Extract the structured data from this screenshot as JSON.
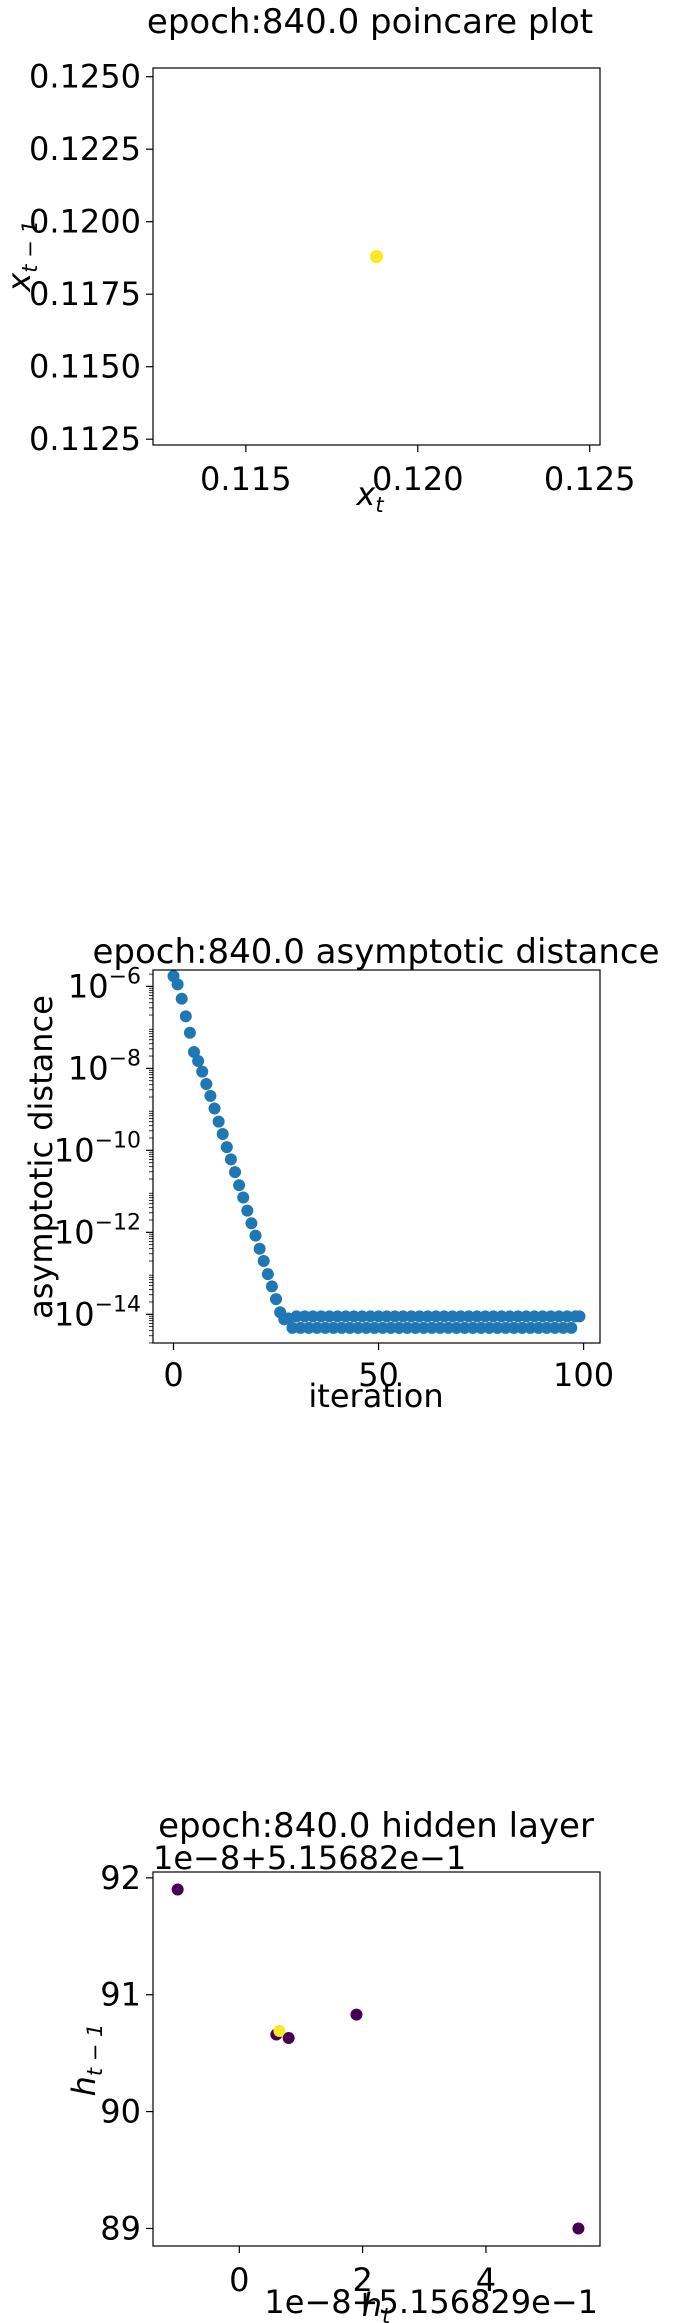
{
  "chart_data": [
    {
      "type": "scatter",
      "title": "epoch:840.0 poincare plot",
      "xlabel": "x_t",
      "ylabel": "x_{t-1}",
      "xlim": [
        0.1123,
        0.1253
      ],
      "ylim": [
        0.1123,
        0.1253
      ],
      "xticks": [
        "0.115",
        "0.120",
        "0.125"
      ],
      "xtick_values": [
        0.115,
        0.12,
        0.125
      ],
      "yticks": [
        "0.1125",
        "0.1150",
        "0.1175",
        "0.1200",
        "0.1225",
        "0.1250"
      ],
      "ytick_values": [
        0.1125,
        0.115,
        0.1175,
        0.12,
        0.1225,
        0.125
      ],
      "points": [
        {
          "x": 0.1188,
          "y": 0.1188
        }
      ],
      "point_color": "#fde725"
    },
    {
      "type": "scatter",
      "title": "epoch:840.0 asymptotic distance",
      "xlabel": "iteration",
      "ylabel": "asymptotic distance",
      "yscale": "log",
      "xlim": [
        -5,
        104
      ],
      "ylim_log10": [
        -14.7,
        -5.6
      ],
      "xticks": [
        "0",
        "50",
        "100"
      ],
      "xtick_values": [
        0,
        50,
        100
      ],
      "ytick_exponents": [
        "−6",
        "−8",
        "−10",
        "−12",
        "−14"
      ],
      "ytick_values_log10": [
        -6,
        -8,
        -10,
        -12,
        -14
      ],
      "ytick_base": "10",
      "point_color": "#1f77b4",
      "x": [
        0,
        1,
        2,
        3,
        4,
        5,
        6,
        7,
        8,
        9,
        10,
        11,
        12,
        13,
        14,
        15,
        16,
        17,
        18,
        19,
        20,
        21,
        22,
        23,
        24,
        25,
        26,
        27,
        28,
        29,
        30,
        31,
        32,
        33,
        34,
        35,
        36,
        37,
        38,
        39,
        40,
        41,
        42,
        43,
        44,
        45,
        46,
        47,
        48,
        49,
        50,
        51,
        52,
        53,
        54,
        55,
        56,
        57,
        58,
        59,
        60,
        61,
        62,
        63,
        64,
        65,
        66,
        67,
        68,
        69,
        70,
        71,
        72,
        73,
        74,
        75,
        76,
        77,
        78,
        79,
        80,
        81,
        82,
        83,
        84,
        85,
        86,
        87,
        88,
        89,
        90,
        91,
        92,
        93,
        94,
        95,
        96,
        97,
        98,
        99
      ],
      "log10_y": [
        -5.75,
        -5.95,
        -6.3,
        -6.73,
        -7.13,
        -7.6,
        -7.82,
        -8.08,
        -8.38,
        -8.67,
        -8.98,
        -9.3,
        -9.6,
        -9.92,
        -10.22,
        -10.53,
        -10.85,
        -11.15,
        -11.47,
        -11.78,
        -12.08,
        -12.4,
        -12.7,
        -13.02,
        -13.32,
        -13.63,
        -13.95,
        -14.12,
        -14.1,
        -14.33,
        -14.05,
        -14.33,
        -14.05,
        -14.33,
        -14.05,
        -14.33,
        -14.05,
        -14.33,
        -14.05,
        -14.33,
        -14.05,
        -14.33,
        -14.05,
        -14.33,
        -14.05,
        -14.33,
        -14.05,
        -14.33,
        -14.05,
        -14.33,
        -14.05,
        -14.33,
        -14.05,
        -14.33,
        -14.05,
        -14.33,
        -14.05,
        -14.33,
        -14.05,
        -14.33,
        -14.05,
        -14.33,
        -14.05,
        -14.33,
        -14.05,
        -14.33,
        -14.05,
        -14.33,
        -14.05,
        -14.33,
        -14.05,
        -14.33,
        -14.05,
        -14.33,
        -14.05,
        -14.33,
        -14.05,
        -14.33,
        -14.05,
        -14.33,
        -14.05,
        -14.33,
        -14.05,
        -14.33,
        -14.05,
        -14.33,
        -14.05,
        -14.33,
        -14.05,
        -14.33,
        -14.05,
        -14.33,
        -14.05,
        -14.33,
        -14.05,
        -14.33,
        -14.05,
        -14.33,
        -14.05,
        -14.05
      ]
    },
    {
      "type": "scatter",
      "title": "epoch:840.0 hidden layer",
      "xlabel": "h_t",
      "ylabel": "h_{t-1}",
      "x_offset_text": "1e−8+5.156829e−1",
      "y_offset_text": "1e−8+5.15682e−1",
      "xlim": [
        -1.4,
        5.85
      ],
      "ylim": [
        88.85,
        92.05
      ],
      "xticks": [
        "0",
        "2",
        "4"
      ],
      "xtick_values": [
        0,
        2,
        4
      ],
      "yticks": [
        "89",
        "90",
        "91",
        "92"
      ],
      "ytick_values": [
        89,
        90,
        91,
        92
      ],
      "points": [
        {
          "x": -1.0,
          "y": 91.9,
          "color": "#440154"
        },
        {
          "x": 5.5,
          "y": 89.0,
          "color": "#440154"
        },
        {
          "x": 1.9,
          "y": 90.83,
          "color": "#440154"
        },
        {
          "x": 0.6,
          "y": 90.66,
          "color": "#440154"
        },
        {
          "x": 0.8,
          "y": 90.63,
          "color": "#440154"
        },
        {
          "x": 0.65,
          "y": 90.69,
          "color": "#fde725"
        }
      ]
    }
  ]
}
